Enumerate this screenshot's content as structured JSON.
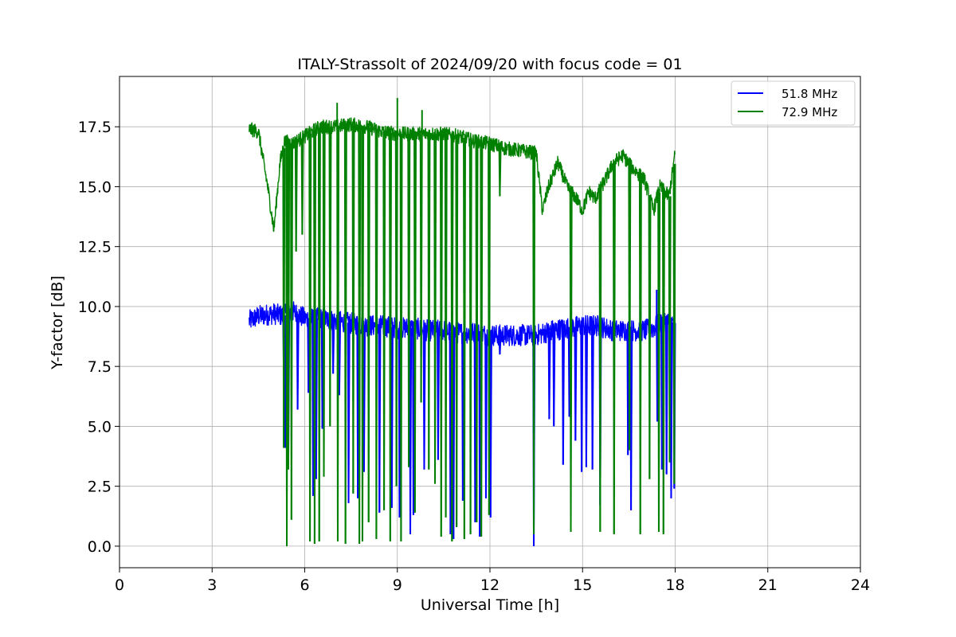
{
  "chart_data": {
    "type": "line",
    "title": "ITALY-Strassolt of 2024/09/20 with focus code = 01",
    "xlabel": "Universal Time [h]",
    "ylabel": "Y-factor [dB]",
    "xlim": [
      0,
      24
    ],
    "ylim": [
      -0.9,
      19.6
    ],
    "xticks": [
      0,
      3,
      6,
      9,
      12,
      15,
      18,
      21,
      24
    ],
    "xtick_labels": [
      "0",
      "3",
      "6",
      "9",
      "12",
      "15",
      "18",
      "21",
      "24"
    ],
    "yticks": [
      0,
      2.5,
      5,
      7.5,
      10,
      12.5,
      15,
      17.5
    ],
    "ytick_labels": [
      "0.0",
      "2.5",
      "5.0",
      "7.5",
      "10.0",
      "12.5",
      "15.0",
      "17.5"
    ],
    "grid": true,
    "legend_position": "top-right",
    "series": [
      {
        "name": "51.8 MHz",
        "color": "#0000ff",
        "x": [
          4.2,
          4.5,
          5.0,
          5.3,
          5.6,
          6.0,
          6.5,
          7.0,
          7.5,
          8.0,
          8.5,
          9.0,
          9.5,
          10.0,
          10.5,
          11.0,
          11.5,
          12.0,
          12.5,
          13.0,
          13.5,
          14.0,
          14.5,
          15.0,
          15.5,
          16.0,
          16.5,
          17.0,
          17.3,
          17.6,
          18.0
        ],
        "y": [
          9.4,
          9.6,
          9.7,
          9.6,
          9.8,
          9.5,
          9.5,
          9.4,
          9.3,
          9.2,
          9.2,
          9.1,
          9.1,
          9.0,
          9.0,
          8.9,
          8.9,
          8.8,
          8.8,
          8.8,
          8.8,
          9.0,
          9.1,
          9.2,
          9.2,
          9.0,
          9.0,
          9.0,
          9.1,
          9.4,
          9.3
        ],
        "dips": [
          [
            5.3,
            7.3
          ],
          [
            5.35,
            4.1
          ],
          [
            5.45,
            3.6
          ],
          [
            5.75,
            5.7
          ],
          [
            6.1,
            6.4
          ],
          [
            6.25,
            2.1
          ],
          [
            6.35,
            2.8
          ],
          [
            6.55,
            4.9
          ],
          [
            6.9,
            7.2
          ],
          [
            7.1,
            6.3
          ],
          [
            7.4,
            1.8
          ],
          [
            7.7,
            2.0
          ],
          [
            7.9,
            3.1
          ],
          [
            8.4,
            1.4
          ],
          [
            8.8,
            1.6
          ],
          [
            9.05,
            1.2
          ],
          [
            9.4,
            0.5
          ],
          [
            9.5,
            1.3
          ],
          [
            9.85,
            3.2
          ],
          [
            10.3,
            3.6
          ],
          [
            10.7,
            0.5
          ],
          [
            10.8,
            0.3
          ],
          [
            11.1,
            1.9
          ],
          [
            11.5,
            1.0
          ],
          [
            11.65,
            0.4
          ],
          [
            11.85,
            2.0
          ],
          [
            12.0,
            1.2
          ],
          [
            12.3,
            8.0
          ],
          [
            13.4,
            0.0
          ],
          [
            13.9,
            5.3
          ],
          [
            14.05,
            5.0
          ],
          [
            14.35,
            3.4
          ],
          [
            14.55,
            5.4
          ],
          [
            14.75,
            4.4
          ],
          [
            14.95,
            3.1
          ],
          [
            15.1,
            3.3
          ],
          [
            15.3,
            3.2
          ],
          [
            15.55,
            1.7
          ],
          [
            16.45,
            3.8
          ],
          [
            16.55,
            1.5
          ],
          [
            17.4,
            5.2
          ],
          [
            17.55,
            3.2
          ],
          [
            17.7,
            3.0
          ],
          [
            17.85,
            2.0
          ],
          [
            17.95,
            2.4
          ]
        ]
      },
      {
        "name": "72.9 MHz",
        "color": "#008000",
        "x": [
          4.2,
          4.5,
          4.8,
          5.0,
          5.2,
          5.35,
          5.6,
          6.0,
          6.5,
          7.0,
          7.5,
          8.0,
          8.5,
          9.0,
          9.5,
          10.0,
          10.5,
          11.0,
          11.5,
          12.0,
          12.5,
          13.0,
          13.5,
          13.7,
          13.9,
          14.2,
          14.5,
          14.8,
          15.0,
          15.2,
          15.4,
          15.7,
          16.0,
          16.3,
          16.6,
          17.0,
          17.3,
          17.5,
          17.8,
          18.0
        ],
        "y": [
          17.4,
          17.3,
          15.0,
          13.2,
          16.0,
          16.9,
          16.8,
          17.1,
          17.5,
          17.5,
          17.6,
          17.5,
          17.3,
          17.2,
          17.2,
          17.2,
          17.2,
          17.1,
          16.9,
          16.8,
          16.6,
          16.5,
          16.4,
          14.0,
          15.0,
          16.0,
          15.0,
          14.5,
          14.0,
          14.8,
          14.5,
          15.2,
          16.0,
          16.3,
          15.8,
          15.3,
          14.0,
          15.0,
          14.6,
          16.4
        ],
        "dips": [
          [
            5.3,
            4.1
          ],
          [
            5.4,
            0.0
          ],
          [
            5.45,
            3.2
          ],
          [
            5.55,
            1.1
          ],
          [
            5.7,
            12.3
          ],
          [
            5.9,
            13.0
          ],
          [
            6.15,
            0.2
          ],
          [
            6.3,
            0.1
          ],
          [
            6.45,
            0.2
          ],
          [
            6.6,
            2.9
          ],
          [
            6.8,
            5.0
          ],
          [
            7.05,
            0.2
          ],
          [
            7.3,
            0.1
          ],
          [
            7.55,
            2.2
          ],
          [
            7.75,
            0.1
          ],
          [
            7.85,
            0.2
          ],
          [
            8.05,
            1.0
          ],
          [
            8.3,
            0.3
          ],
          [
            8.55,
            1.5
          ],
          [
            8.75,
            0.2
          ],
          [
            8.95,
            2.5
          ],
          [
            9.1,
            0.2
          ],
          [
            9.35,
            3.3
          ],
          [
            9.55,
            1.4
          ],
          [
            9.75,
            6.0
          ],
          [
            10.0,
            3.2
          ],
          [
            10.2,
            2.6
          ],
          [
            10.4,
            0.4
          ],
          [
            10.55,
            1.2
          ],
          [
            10.75,
            0.2
          ],
          [
            10.9,
            0.8
          ],
          [
            11.15,
            0.3
          ],
          [
            11.35,
            0.5
          ],
          [
            11.55,
            1.0
          ],
          [
            11.7,
            0.4
          ],
          [
            11.95,
            1.3
          ],
          [
            12.3,
            14.6
          ],
          [
            13.4,
            0.5
          ],
          [
            14.6,
            0.6
          ],
          [
            15.55,
            0.6
          ],
          [
            16.0,
            0.5
          ],
          [
            16.5,
            4.0
          ],
          [
            16.85,
            0.5
          ],
          [
            17.15,
            2.8
          ],
          [
            17.45,
            0.6
          ],
          [
            17.6,
            0.5
          ],
          [
            17.8,
            3.5
          ],
          [
            17.95,
            2.6
          ]
        ]
      }
    ],
    "spikes": [
      {
        "series": 1,
        "x": 7.05,
        "y": 18.5
      },
      {
        "series": 1,
        "x": 9.0,
        "y": 18.7
      },
      {
        "series": 1,
        "x": 9.8,
        "y": 18.2
      },
      {
        "series": 0,
        "x": 17.4,
        "y": 10.7
      }
    ]
  }
}
